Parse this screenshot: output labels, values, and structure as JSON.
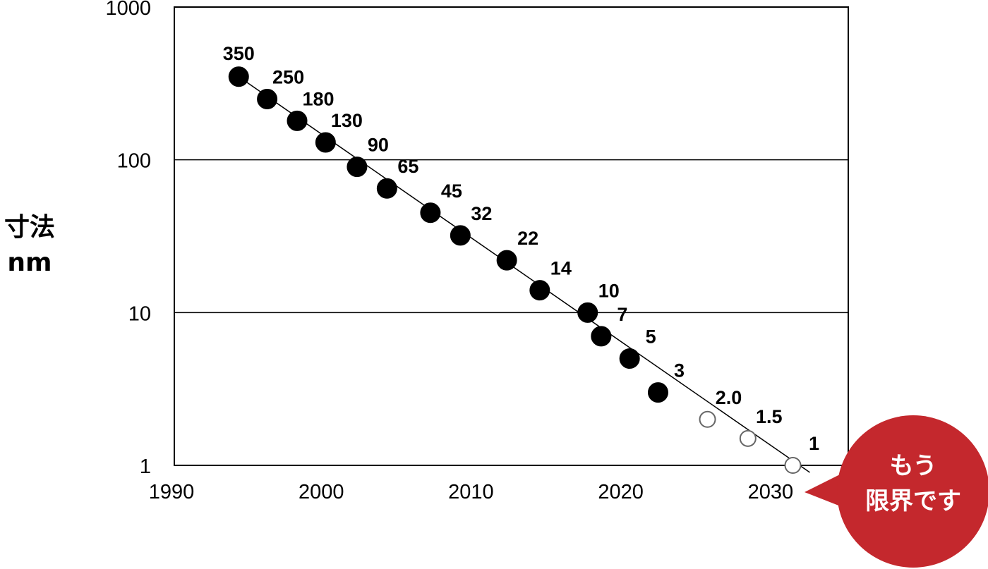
{
  "chart_data": {
    "type": "scatter",
    "title": "",
    "ylabel": [
      "寸法",
      "nm"
    ],
    "xlabel": "",
    "xlim": [
      1990,
      2035
    ],
    "ylim": [
      1,
      1000
    ],
    "yscale": "log",
    "x_ticks": [
      "1990",
      "2000",
      "2010",
      "2020",
      "2030"
    ],
    "y_ticks": [
      "1",
      "10",
      "100",
      "1000"
    ],
    "grid": "horizontal",
    "trendline": true,
    "series": [
      {
        "style": "filled",
        "points": [
          {
            "x": 1994.3,
            "y": 350,
            "label": "350"
          },
          {
            "x": 1996.2,
            "y": 250,
            "label": "250"
          },
          {
            "x": 1998.2,
            "y": 180,
            "label": "180"
          },
          {
            "x": 2000.1,
            "y": 130,
            "label": "130"
          },
          {
            "x": 2002.2,
            "y": 90,
            "label": "90"
          },
          {
            "x": 2004.2,
            "y": 65,
            "label": "65"
          },
          {
            "x": 2007.1,
            "y": 45,
            "label": "45"
          },
          {
            "x": 2009.1,
            "y": 32,
            "label": "32"
          },
          {
            "x": 2012.2,
            "y": 22,
            "label": "22"
          },
          {
            "x": 2014.4,
            "y": 14,
            "label": "14"
          },
          {
            "x": 2017.6,
            "y": 10,
            "label": "10"
          },
          {
            "x": 2018.5,
            "y": 7,
            "label": "7"
          },
          {
            "x": 2020.4,
            "y": 5,
            "label": "5"
          },
          {
            "x": 2022.3,
            "y": 3,
            "label": "3"
          }
        ]
      },
      {
        "style": "open",
        "points": [
          {
            "x": 2025.6,
            "y": 2.0,
            "label": "2.0"
          },
          {
            "x": 2028.3,
            "y": 1.5,
            "label": "1.5"
          },
          {
            "x": 2031.3,
            "y": 1,
            "label": "1"
          }
        ]
      }
    ],
    "callout": {
      "lines": [
        "もう",
        "限界です"
      ],
      "color": "#c4282d"
    }
  }
}
